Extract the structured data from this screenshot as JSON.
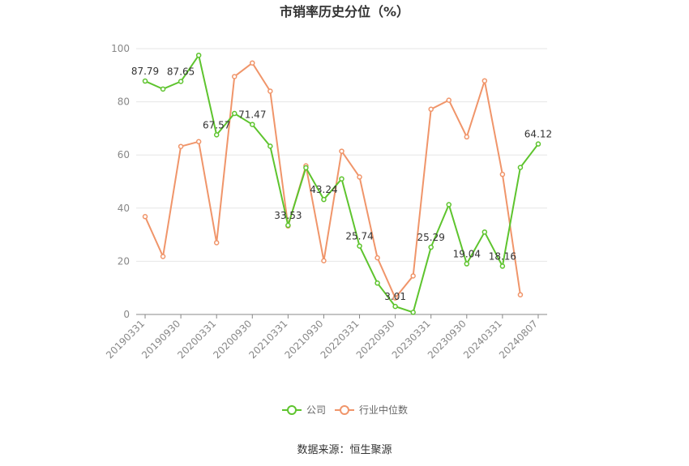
{
  "chart_data": {
    "type": "line",
    "title": "市销率历史分位（%）",
    "ylim": [
      0,
      100
    ],
    "y_ticks": [
      0,
      20,
      40,
      60,
      80,
      100
    ],
    "x_tick_labels": [
      "20190331",
      "20190930",
      "20200331",
      "20200930",
      "20210331",
      "20210930",
      "20220331",
      "20220930",
      "20230331",
      "20230930",
      "20240331",
      "20240807"
    ],
    "x": [
      "20190331",
      "20190630",
      "20190930",
      "20191231",
      "20200331",
      "20200630",
      "20200930",
      "20201231",
      "20210331",
      "20210630",
      "20210930",
      "20211231",
      "20220331",
      "20220630",
      "20220930",
      "20221231",
      "20230331",
      "20230630",
      "20230930",
      "20231231",
      "20240331",
      "20240630",
      "20240807"
    ],
    "grid": true,
    "legend_position": "bottom",
    "series": [
      {
        "name": "公司",
        "color": "#5ec42e",
        "values": [
          87.79,
          84.8,
          87.65,
          97.5,
          67.57,
          75.6,
          71.47,
          63.3,
          33.53,
          55.2,
          43.24,
          51.0,
          25.74,
          11.8,
          3.01,
          0.8,
          25.29,
          41.3,
          19.04,
          31.0,
          18.16,
          55.3,
          64.12
        ],
        "labels": {
          "0": "87.79",
          "2": "87.65",
          "4": "67.57",
          "6": "71.47",
          "8": "33.53",
          "10": "43.24",
          "12": "25.74",
          "14": "3.01",
          "16": "25.29",
          "18": "19.04",
          "20": "18.16",
          "22": "64.12"
        }
      },
      {
        "name": "行业中位数",
        "color": "#f0956a",
        "values": [
          36.8,
          21.8,
          63.2,
          65.0,
          27.0,
          89.5,
          94.6,
          84.0,
          33.3,
          55.9,
          20.2,
          61.4,
          51.7,
          21.3,
          6.2,
          14.5,
          77.2,
          80.6,
          66.8,
          87.9,
          52.7,
          7.4,
          null
        ]
      }
    ]
  },
  "source": "数据来源：恒生聚源"
}
